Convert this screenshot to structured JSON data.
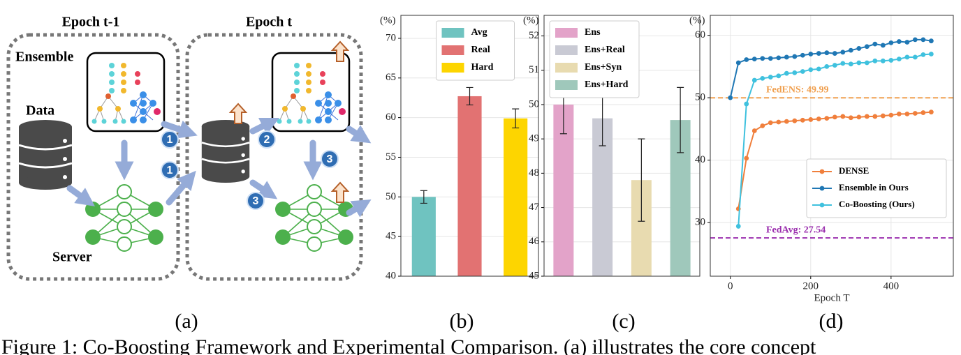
{
  "diagram": {
    "epochs": [
      "Epoch t-1",
      "Epoch t"
    ],
    "ensemble": "Ensemble",
    "data": "Data",
    "server": "Server",
    "steps": [
      "1",
      "1",
      "2",
      "3",
      "3"
    ]
  },
  "chart_data": [
    {
      "type": "bar",
      "ylabel": "(%)",
      "ylim": [
        40,
        72.9
      ],
      "yticks": [
        40,
        45,
        50,
        55,
        60,
        65,
        70
      ],
      "grid": true,
      "legend": "upper center",
      "series": [
        {
          "name": "Avg",
          "color": "#6fc3c0",
          "values": [
            50.0
          ],
          "errors": [
            0.8
          ]
        },
        {
          "name": "Real",
          "color": "#e27272",
          "values": [
            62.7
          ],
          "errors": [
            1.1
          ]
        },
        {
          "name": "Hard",
          "color": "#fdd500",
          "values": [
            59.9
          ],
          "errors": [
            1.2
          ]
        }
      ]
    },
    {
      "type": "bar",
      "ylabel": "(%)",
      "ylim": [
        45,
        52.6
      ],
      "yticks": [
        45,
        46,
        47,
        48,
        49,
        50,
        51,
        52
      ],
      "grid": true,
      "legend": "upper left",
      "series": [
        {
          "name": "Ens",
          "color": "#e3a3c9",
          "values": [
            50.0
          ],
          "errors": [
            0.85
          ]
        },
        {
          "name": "Ens+Real",
          "color": "#c9cad4",
          "values": [
            49.6
          ],
          "errors": [
            0.8
          ]
        },
        {
          "name": "Ens+Syn",
          "color": "#e8dbb0",
          "values": [
            47.8
          ],
          "errors": [
            1.2
          ]
        },
        {
          "name": "Ens+Hard",
          "color": "#9fc8bb",
          "values": [
            49.55
          ],
          "errors": [
            0.95
          ]
        }
      ]
    },
    {
      "type": "line",
      "ylabel": "(%)",
      "xlabel": "Epoch T",
      "xlim": [
        -50,
        555
      ],
      "xticks": [
        0,
        200,
        400
      ],
      "ylim": [
        21.4,
        63.2
      ],
      "yticks": [
        30,
        40,
        50,
        60
      ],
      "grid": true,
      "legend": "lower right",
      "x": [
        0,
        20,
        40,
        60,
        80,
        100,
        120,
        140,
        160,
        180,
        200,
        220,
        240,
        260,
        280,
        300,
        320,
        340,
        360,
        380,
        400,
        420,
        440,
        460,
        480,
        500
      ],
      "series": [
        {
          "name": "DENSE",
          "color": "#f07f3c",
          "values": [
            null,
            32.2,
            40.3,
            44.7,
            45.5,
            46.0,
            46.1,
            46.2,
            46.3,
            46.4,
            46.5,
            46.6,
            46.7,
            46.9,
            47.0,
            46.8,
            46.9,
            47.0,
            47.0,
            47.1,
            47.2,
            47.4,
            47.4,
            47.5,
            47.6,
            47.7
          ]
        },
        {
          "name": "Ensemble in Ours",
          "color": "#1f77b4",
          "values": [
            50.0,
            55.6,
            56.1,
            56.2,
            56.3,
            56.3,
            56.4,
            56.5,
            56.6,
            56.8,
            57.0,
            57.1,
            57.2,
            57.1,
            57.3,
            57.6,
            57.9,
            58.2,
            58.6,
            58.4,
            58.8,
            59.0,
            58.9,
            59.3,
            59.3,
            59.1
          ]
        },
        {
          "name": "Co-Boosting (Ours)",
          "color": "#3fc1de",
          "values": [
            null,
            29.4,
            49.0,
            52.8,
            53.1,
            53.3,
            53.5,
            53.9,
            54.0,
            54.2,
            54.5,
            54.6,
            55.0,
            55.2,
            55.5,
            55.4,
            55.6,
            55.6,
            55.9,
            55.9,
            56.0,
            56.2,
            56.5,
            56.5,
            56.9,
            57.0
          ]
        }
      ],
      "hlines": [
        {
          "label": "FedENS: 49.99",
          "value": 49.99,
          "color": "#f0a050"
        },
        {
          "label": "FedAvg: 27.54",
          "value": 27.54,
          "color": "#9b2fae"
        }
      ]
    }
  ],
  "panel_labels": [
    "(a)",
    "(b)",
    "(c)",
    "(d)"
  ],
  "caption": "Figure 1: Co-Boosting Framework and Experimental Comparison. (a) illustrates the core concept"
}
